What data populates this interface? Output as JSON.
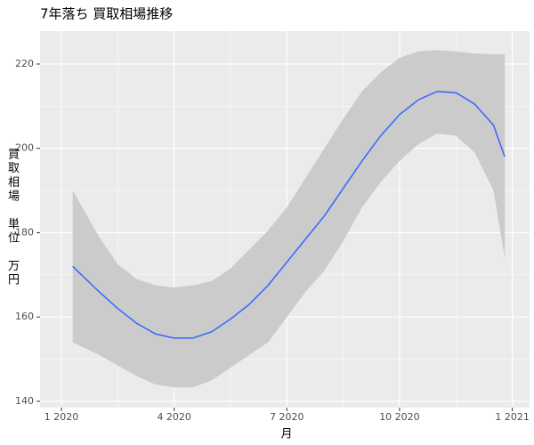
{
  "chart_data": {
    "type": "line",
    "title": "7年落ち 買取相場推移",
    "xlabel": "月",
    "ylabel": "買取相場　単位　万円",
    "x": [
      1.3,
      2,
      2.5,
      3,
      3.5,
      4,
      4.5,
      5,
      5.5,
      6,
      6.5,
      7,
      7.5,
      8,
      8.5,
      9,
      9.5,
      10,
      10.5,
      11,
      11.5,
      12,
      12.5,
      12.8
    ],
    "values": [
      172,
      166,
      162,
      158.5,
      156,
      155,
      155,
      156.5,
      159.5,
      163,
      167.5,
      173,
      178.5,
      184,
      190.5,
      197,
      203,
      208,
      211.5,
      213.5,
      213.2,
      210.5,
      205.5,
      198
    ],
    "lower": [
      154,
      151,
      148.5,
      146,
      144,
      143.3,
      143.3,
      145,
      148,
      151,
      154,
      160,
      166,
      171,
      178,
      186,
      192,
      197,
      201,
      203.5,
      203,
      199,
      190,
      174
    ],
    "upper": [
      190,
      179,
      172.5,
      169,
      167.5,
      167,
      167.5,
      168.5,
      171.5,
      176,
      180.5,
      186,
      193,
      200,
      207,
      213.5,
      218,
      221.5,
      223,
      223.3,
      223,
      222.5,
      222.3,
      222.3
    ],
    "color": "#3366ff",
    "band_color": "#cbcbcb",
    "xlim": [
      0.43,
      13.46
    ],
    "ylim": [
      138.5,
      227.8
    ],
    "xticks": [
      {
        "value": 1,
        "label": "1 2020"
      },
      {
        "value": 4,
        "label": "4 2020"
      },
      {
        "value": 7,
        "label": "7 2020"
      },
      {
        "value": 10,
        "label": "10 2020"
      },
      {
        "value": 13,
        "label": "1 2021"
      }
    ],
    "yticks": [
      140,
      160,
      180,
      200,
      220
    ],
    "grid": true
  }
}
